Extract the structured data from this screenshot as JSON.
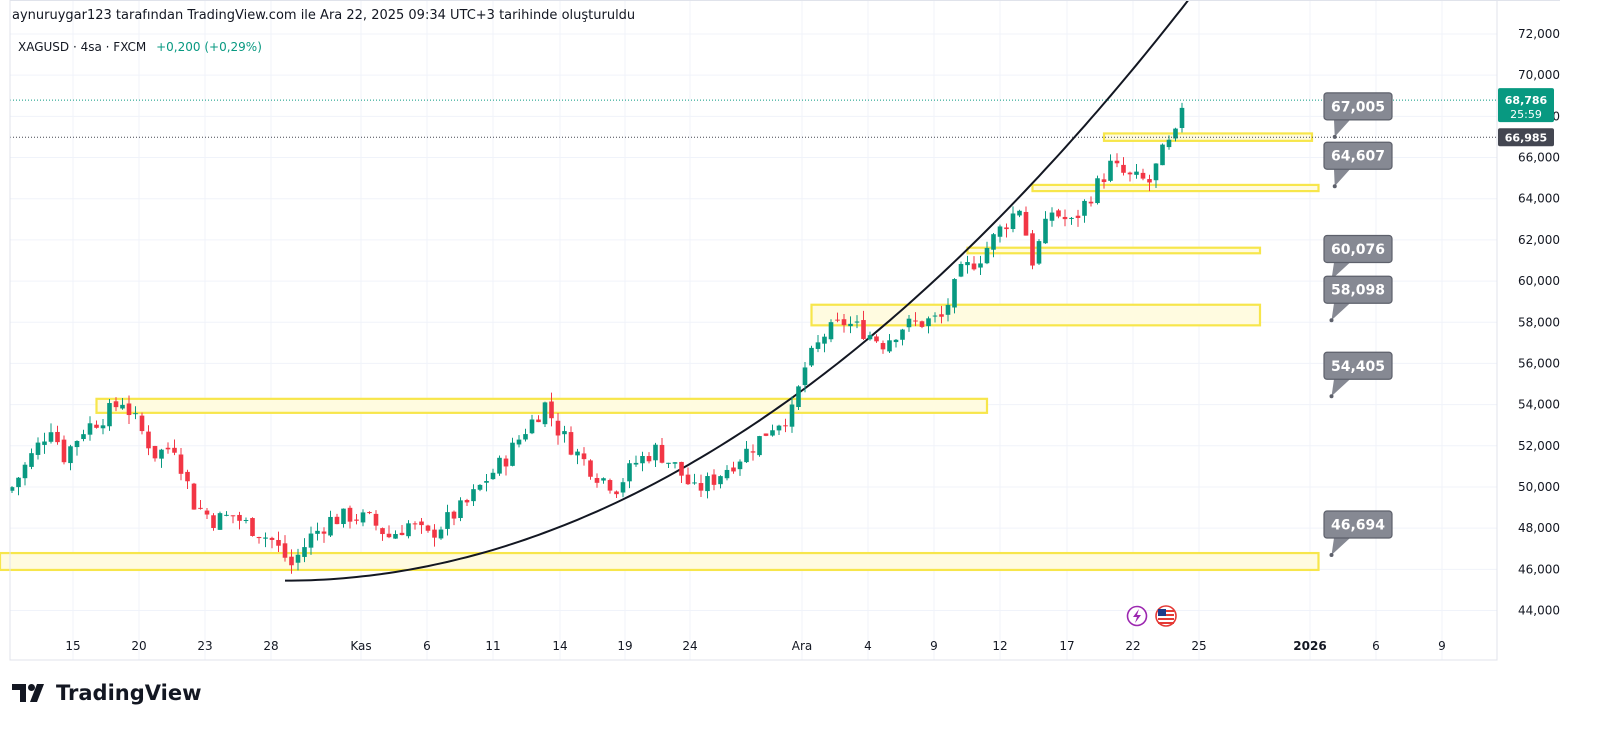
{
  "header": {
    "caption": "aynuruygar123 tarafından TradingView.com ile Ara 22, 2025 09:34 UTC+3 tarihinde oluşturuldu",
    "symbol": "XAGUSD · 4sa · FXCM",
    "change": "+0,200 (+0,29%)"
  },
  "brand": {
    "name": "TradingView"
  },
  "icons": {
    "lightning": "lightning-icon",
    "flag": "us-flag-icon",
    "logo": "tradingview-logo-icon"
  },
  "colors": {
    "up": "#089981",
    "down": "#f23645",
    "zone": "#f7e64b",
    "zone_fill": "#fffbe0",
    "callout": "#868993",
    "curve": "#131722"
  },
  "price_axis": {
    "ticks": [
      "72,000",
      "70,000",
      "68,000",
      "66,000",
      "64,000",
      "62,000",
      "60,000",
      "58,000",
      "56,000",
      "54,000",
      "52,000",
      "50,000",
      "48,000",
      "46,000",
      "44,000"
    ],
    "last_price": "68,786",
    "countdown": "25:59",
    "level_price": "66,985"
  },
  "time_axis": {
    "ticks": [
      {
        "label": "15",
        "bold": false
      },
      {
        "label": "20",
        "bold": false
      },
      {
        "label": "23",
        "bold": false
      },
      {
        "label": "28",
        "bold": false
      },
      {
        "label": "Kas",
        "bold": false
      },
      {
        "label": "6",
        "bold": false
      },
      {
        "label": "11",
        "bold": false
      },
      {
        "label": "14",
        "bold": false
      },
      {
        "label": "19",
        "bold": false
      },
      {
        "label": "24",
        "bold": false
      },
      {
        "label": "Ara",
        "bold": false
      },
      {
        "label": "4",
        "bold": false
      },
      {
        "label": "9",
        "bold": false
      },
      {
        "label": "12",
        "bold": false
      },
      {
        "label": "17",
        "bold": false
      },
      {
        "label": "22",
        "bold": false
      },
      {
        "label": "25",
        "bold": false
      },
      {
        "label": "2026",
        "bold": true
      },
      {
        "label": "6",
        "bold": false
      },
      {
        "label": "9",
        "bold": false
      }
    ]
  },
  "chart_data": {
    "type": "candlestick",
    "symbol": "XAGUSD",
    "interval": "4sa",
    "ylim": [
      43.3,
      72.6
    ],
    "grid": true,
    "close_path": [
      [
        0,
        50.0
      ],
      [
        3,
        51.5
      ],
      [
        6,
        53.0
      ],
      [
        8,
        51.5
      ],
      [
        11,
        52.8
      ],
      [
        14,
        53.4
      ],
      [
        17,
        54.2
      ],
      [
        19,
        53.2
      ],
      [
        22,
        51.6
      ],
      [
        25,
        52.0
      ],
      [
        28,
        49.2
      ],
      [
        31,
        48.4
      ],
      [
        34,
        48.6
      ],
      [
        37,
        48.0
      ],
      [
        40,
        47.4
      ],
      [
        43,
        46.2
      ],
      [
        46,
        47.6
      ],
      [
        49,
        48.4
      ],
      [
        52,
        48.6
      ],
      [
        55,
        48.4
      ],
      [
        58,
        47.6
      ],
      [
        61,
        48.2
      ],
      [
        64,
        47.6
      ],
      [
        67,
        48.4
      ],
      [
        70,
        49.2
      ],
      [
        73,
        50.4
      ],
      [
        76,
        51.4
      ],
      [
        79,
        52.8
      ],
      [
        82,
        54.0
      ],
      [
        84,
        52.8
      ],
      [
        87,
        51.6
      ],
      [
        90,
        50.6
      ],
      [
        93,
        50.0
      ],
      [
        96,
        51.2
      ],
      [
        99,
        51.8
      ],
      [
        102,
        51.0
      ],
      [
        105,
        49.8
      ],
      [
        108,
        50.4
      ],
      [
        111,
        51.2
      ],
      [
        114,
        52.0
      ],
      [
        117,
        53.0
      ],
      [
        120,
        53.6
      ],
      [
        122,
        55.8
      ],
      [
        125,
        57.4
      ],
      [
        128,
        58.0
      ],
      [
        131,
        57.6
      ],
      [
        134,
        57.0
      ],
      [
        137,
        57.8
      ],
      [
        140,
        58.0
      ],
      [
        143,
        58.2
      ],
      [
        146,
        60.4
      ],
      [
        149,
        61.2
      ],
      [
        152,
        62.5
      ],
      [
        155,
        63.6
      ],
      [
        157,
        61.0
      ],
      [
        160,
        63.4
      ],
      [
        163,
        62.8
      ],
      [
        166,
        64.2
      ],
      [
        169,
        65.6
      ],
      [
        172,
        65.0
      ],
      [
        175,
        64.8
      ],
      [
        177,
        66.2
      ],
      [
        179,
        67.0
      ],
      [
        180,
        68.6
      ]
    ],
    "zones": [
      {
        "x0": -9,
        "x1": 201,
        "y0": 45.97,
        "y1": 46.79
      },
      {
        "x0": 13,
        "x1": 150,
        "y0": 53.6,
        "y1": 54.28
      },
      {
        "x0": 123,
        "x1": 192,
        "y0": 57.85,
        "y1": 58.85
      },
      {
        "x0": 147,
        "x1": 192,
        "y0": 61.35,
        "y1": 61.62
      },
      {
        "x0": 157,
        "x1": 201,
        "y0": 64.37,
        "y1": 64.67
      },
      {
        "x0": 168,
        "x1": 200,
        "y0": 66.81,
        "y1": 67.17
      }
    ],
    "curve": {
      "x0": 42,
      "xend": 190,
      "y_base": 45.45,
      "k": 0.00146,
      "p": 2.0
    },
    "callouts": [
      {
        "label": "67,005",
        "x": 203.5,
        "y": 67.005
      },
      {
        "label": "64,607",
        "x": 203.5,
        "y": 64.607
      },
      {
        "label": "60,076",
        "x": 203.0,
        "y": 60.076
      },
      {
        "label": "58,098",
        "x": 203.0,
        "y": 58.098
      },
      {
        "label": "54,405",
        "x": 203.0,
        "y": 54.405
      },
      {
        "label": "46,694",
        "x": 203.0,
        "y": 46.694
      }
    ],
    "last_price": 68.786,
    "level_price": 66.985
  }
}
